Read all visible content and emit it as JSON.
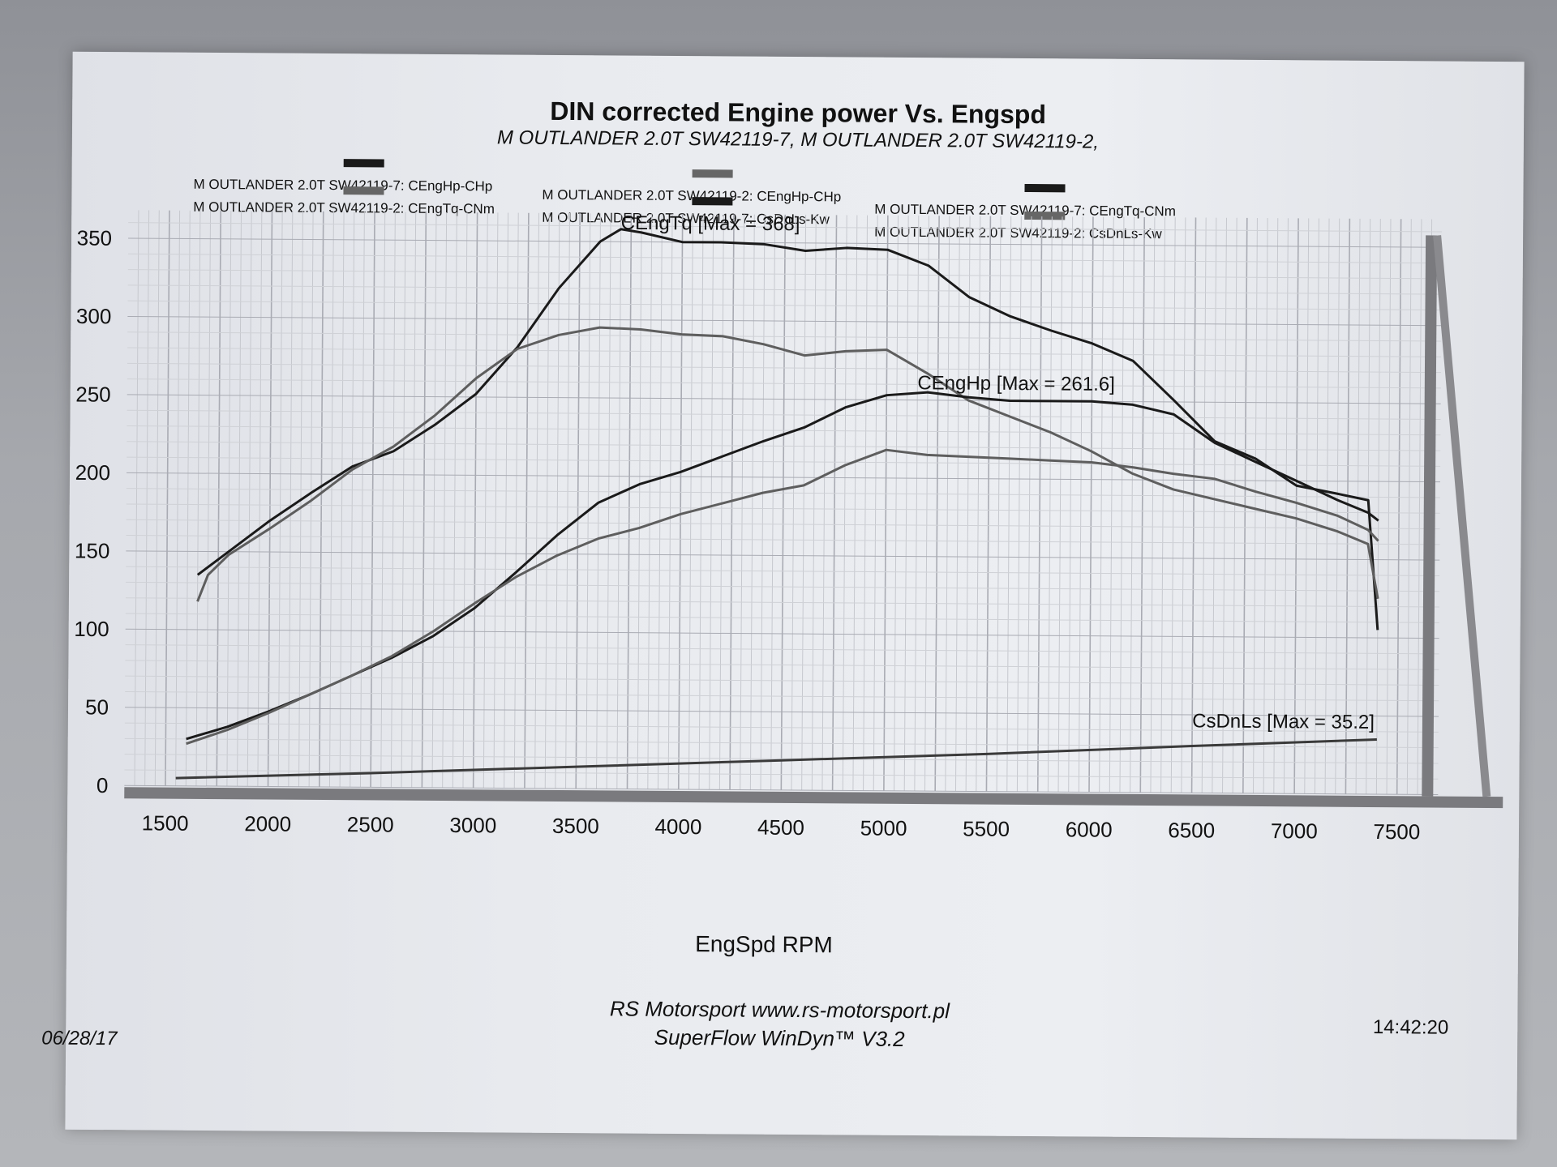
{
  "chart_data": {
    "type": "line",
    "title": "DIN corrected Engine power Vs. Engspd",
    "subtitle": "M OUTLANDER 2.0T SW42119-7, M OUTLANDER 2.0T SW42119-2,",
    "xlabel": "EngSpd RPM",
    "ylabel": "",
    "xlim": [
      1300,
      7700
    ],
    "ylim": [
      0,
      368
    ],
    "x_ticks": [
      "1500",
      "2000",
      "2500",
      "3000",
      "3500",
      "4000",
      "4500",
      "5000",
      "5500",
      "6000",
      "6500",
      "7000",
      "7500"
    ],
    "y_ticks": [
      "0",
      "50",
      "100",
      "150",
      "200",
      "250",
      "300",
      "350"
    ],
    "grid": true,
    "legend": [
      {
        "text": "M OUTLANDER 2.0T SW42119-7: CEngHp-CHp",
        "color": "#1a1a1a"
      },
      {
        "text": "M OUTLANDER 2.0T SW42119-2: CEngTq-CNm",
        "color": "#666666"
      },
      {
        "text": "M OUTLANDER 2.0T SW42119-2: CEngHp-CHp",
        "color": "#666666"
      },
      {
        "text": "M OUTLANDER 2.0T SW42119-7: CsDnLs-Kw",
        "color": "#1a1a1a"
      },
      {
        "text": "M OUTLANDER 2.0T SW42119-7: CEngTq-CNm",
        "color": "#1a1a1a"
      },
      {
        "text": "M OUTLANDER 2.0T SW42119-2: CsDnLs-Kw",
        "color": "#666666"
      }
    ],
    "annotations": [
      {
        "text": "CEngTq [Max = 368]",
        "x": 3700,
        "y": 358
      },
      {
        "text": "CEngHp [Max = 261.6]",
        "x": 5150,
        "y": 257
      },
      {
        "text": "CsDnLs [Max = 35.2]",
        "x": 6500,
        "y": 42
      }
    ],
    "series": [
      {
        "id": "tq7",
        "color": "#1a1a1a",
        "x": [
          1650,
          1800,
          2000,
          2200,
          2400,
          2600,
          2800,
          3000,
          3200,
          3400,
          3600,
          3700,
          3800,
          4000,
          4200,
          4400,
          4600,
          4800,
          5000,
          5200,
          5400,
          5600,
          5800,
          6000,
          6200,
          6400,
          6600,
          6800,
          7000,
          7200,
          7350,
          7400
        ],
        "y": [
          135,
          150,
          170,
          188,
          205,
          215,
          232,
          252,
          282,
          320,
          350,
          358,
          356,
          350,
          350,
          349,
          345,
          347,
          346,
          336,
          316,
          304,
          295,
          287,
          276,
          251,
          225,
          214,
          197,
          192,
          188,
          105
        ]
      },
      {
        "id": "tq2",
        "color": "#5e5e5e",
        "x": [
          1650,
          1700,
          1800,
          2000,
          2200,
          2400,
          2600,
          2800,
          3000,
          3200,
          3400,
          3600,
          3800,
          4000,
          4200,
          4400,
          4600,
          4800,
          5000,
          5200,
          5400,
          5600,
          5800,
          6000,
          6200,
          6400,
          6600,
          6800,
          7000,
          7200,
          7350,
          7400
        ],
        "y": [
          118,
          135,
          148,
          165,
          183,
          203,
          218,
          238,
          262,
          281,
          290,
          295,
          294,
          291,
          290,
          285,
          278,
          281,
          282,
          267,
          250,
          240,
          230,
          218,
          204,
          194,
          188,
          182,
          176,
          168,
          160,
          125
        ]
      },
      {
        "id": "hp7",
        "color": "#1a1a1a",
        "x": [
          1600,
          1800,
          2000,
          2200,
          2400,
          2600,
          2800,
          3000,
          3200,
          3400,
          3600,
          3800,
          4000,
          4200,
          4400,
          4600,
          4800,
          5000,
          5200,
          5400,
          5600,
          5800,
          6000,
          6200,
          6400,
          6600,
          6800,
          7000,
          7200,
          7350,
          7400
        ],
        "y": [
          30,
          38,
          48,
          59,
          71,
          83,
          97,
          115,
          138,
          162,
          183,
          195,
          203,
          213,
          223,
          232,
          245,
          253,
          255,
          252,
          250,
          250,
          250,
          248,
          242,
          224,
          212,
          200,
          188,
          180,
          175
        ]
      },
      {
        "id": "hp2",
        "color": "#5e5e5e",
        "x": [
          1600,
          1800,
          2000,
          2200,
          2400,
          2600,
          2800,
          3000,
          3200,
          3400,
          3600,
          3800,
          4000,
          4200,
          4400,
          4600,
          4800,
          5000,
          5200,
          5400,
          5600,
          5800,
          6000,
          6200,
          6400,
          6600,
          6800,
          7000,
          7200,
          7350,
          7400
        ],
        "y": [
          27,
          36,
          47,
          59,
          71,
          84,
          100,
          118,
          135,
          149,
          160,
          167,
          176,
          183,
          190,
          195,
          208,
          218,
          215,
          214,
          213,
          212,
          211,
          208,
          204,
          201,
          193,
          186,
          178,
          169,
          162
        ]
      },
      {
        "id": "cs",
        "color": "#3a3a3a",
        "x": [
          1550,
          2500,
          3500,
          4500,
          5500,
          6500,
          7400
        ],
        "y": [
          5,
          9,
          14,
          19,
          24,
          30,
          35
        ]
      }
    ]
  },
  "footer": {
    "line1": "RS Motorsport  www.rs-motorsport.pl",
    "line2": "SuperFlow WinDyn™ V3.2",
    "date": "06/28/17",
    "time": "14:42:20"
  }
}
